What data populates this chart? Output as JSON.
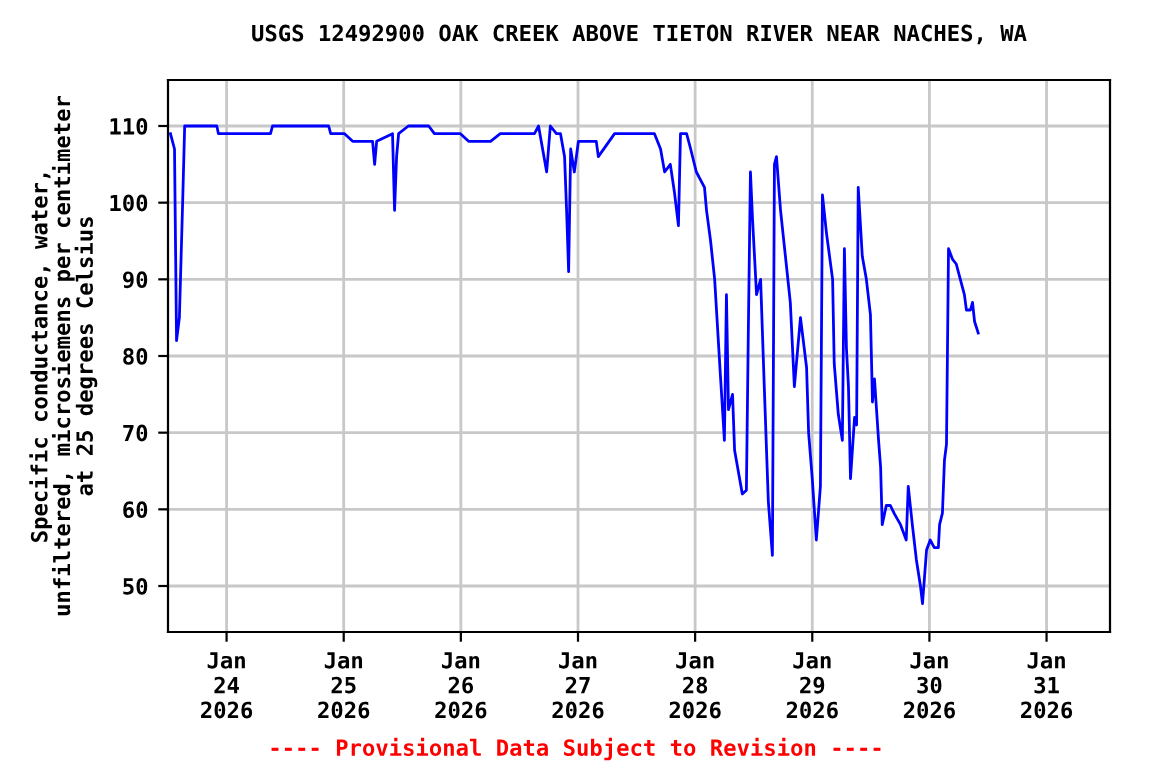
{
  "chart_data": {
    "type": "line",
    "title": "USGS 12492900 OAK CREEK ABOVE TIETON RIVER NEAR NACHES, WA",
    "ylabel": "Specific conductance, water,\nunfiltered, microsiemens per centimeter\nat 25 degrees Celsius",
    "annotations": [
      "---- Provisional Data Subject to Revision ----"
    ],
    "xlim": [
      "2026-01-23T12:00",
      "2026-01-31T13:00"
    ],
    "xticks": [
      {
        "value": "2026-01-24",
        "label": "Jan\n24\n2026"
      },
      {
        "value": "2026-01-25",
        "label": "Jan\n25\n2026"
      },
      {
        "value": "2026-01-26",
        "label": "Jan\n26\n2026"
      },
      {
        "value": "2026-01-27",
        "label": "Jan\n27\n2026"
      },
      {
        "value": "2026-01-28",
        "label": "Jan\n28\n2026"
      },
      {
        "value": "2026-01-29",
        "label": "Jan\n29\n2026"
      },
      {
        "value": "2026-01-30",
        "label": "Jan\n30\n2026"
      },
      {
        "value": "2026-01-31",
        "label": "Jan\n31\n2026"
      }
    ],
    "ylim": [
      44,
      116
    ],
    "yticks": [
      50,
      60,
      70,
      80,
      90,
      100,
      110
    ],
    "grid": true,
    "legend": false,
    "marker": "none",
    "line_style": "solid",
    "series": [
      {
        "color": "#0000ff",
        "x": [
          "2026-01-23T12:30",
          "2026-01-23T13:20",
          "2026-01-23T13:45",
          "2026-01-23T14:20",
          "2026-01-23T15:00",
          "2026-01-23T15:25",
          "2026-01-23T22:00",
          "2026-01-23T22:20",
          "2026-01-24T09:00",
          "2026-01-24T09:25",
          "2026-01-24T20:55",
          "2026-01-24T21:20",
          "2026-01-25T00:10",
          "2026-01-25T01:50",
          "2026-01-25T05:55",
          "2026-01-25T06:20",
          "2026-01-25T06:45",
          "2026-01-25T10:00",
          "2026-01-25T10:25",
          "2026-01-25T10:50",
          "2026-01-25T11:15",
          "2026-01-25T13:15",
          "2026-01-25T17:25",
          "2026-01-25T18:35",
          "2026-01-25T23:55",
          "2026-01-26T01:35",
          "2026-01-26T06:05",
          "2026-01-26T08:05",
          "2026-01-26T15:05",
          "2026-01-26T15:55",
          "2026-01-26T17:35",
          "2026-01-26T18:20",
          "2026-01-26T19:35",
          "2026-01-26T20:25",
          "2026-01-26T21:15",
          "2026-01-26T21:40",
          "2026-01-26T22:05",
          "2026-01-26T22:30",
          "2026-01-26T23:15",
          "2026-01-27T00:05",
          "2026-01-27T03:45",
          "2026-01-27T04:10",
          "2026-01-27T05:50",
          "2026-01-27T07:30",
          "2026-01-27T15:40",
          "2026-01-27T16:55",
          "2026-01-27T17:45",
          "2026-01-27T18:55",
          "2026-01-27T19:45",
          "2026-01-27T20:35",
          "2026-01-27T21:00",
          "2026-01-27T22:15",
          "2026-01-27T23:05",
          "2026-01-28T00:15",
          "2026-01-28T01:55",
          "2026-01-28T02:20",
          "2026-01-28T03:10",
          "2026-01-28T04:00",
          "2026-01-28T05:10",
          "2026-01-28T06:00",
          "2026-01-28T06:25",
          "2026-01-28T06:50",
          "2026-01-28T07:40",
          "2026-01-28T08:05",
          "2026-01-28T09:40",
          "2026-01-28T10:30",
          "2026-01-28T10:55",
          "2026-01-28T11:20",
          "2026-01-28T11:45",
          "2026-01-28T12:35",
          "2026-01-28T13:25",
          "2026-01-28T14:10",
          "2026-01-28T15:00",
          "2026-01-28T15:50",
          "2026-01-28T16:15",
          "2026-01-28T16:40",
          "2026-01-28T17:30",
          "2026-01-28T18:40",
          "2026-01-28T19:30",
          "2026-01-28T20:20",
          "2026-01-28T21:35",
          "2026-01-28T22:50",
          "2026-01-28T23:15",
          "2026-01-29T00:00",
          "2026-01-29T00:50",
          "2026-01-29T01:40",
          "2026-01-29T02:05",
          "2026-01-29T02:55",
          "2026-01-29T04:10",
          "2026-01-29T04:30",
          "2026-01-29T05:20",
          "2026-01-29T06:10",
          "2026-01-29T06:35",
          "2026-01-29T07:00",
          "2026-01-29T07:25",
          "2026-01-29T07:50",
          "2026-01-29T08:40",
          "2026-01-29T09:05",
          "2026-01-29T09:25",
          "2026-01-29T10:15",
          "2026-01-29T11:05",
          "2026-01-29T11:55",
          "2026-01-29T12:20",
          "2026-01-29T12:45",
          "2026-01-29T13:35",
          "2026-01-29T14:00",
          "2026-01-29T14:20",
          "2026-01-29T15:10",
          "2026-01-29T16:00",
          "2026-01-29T16:50",
          "2026-01-29T18:05",
          "2026-01-29T19:15",
          "2026-01-29T19:40",
          "2026-01-29T20:30",
          "2026-01-29T21:20",
          "2026-01-29T22:10",
          "2026-01-29T22:35",
          "2026-01-29T23:25",
          "2026-01-30T00:10",
          "2026-01-30T01:00",
          "2026-01-30T01:50",
          "2026-01-30T02:05",
          "2026-01-30T02:40",
          "2026-01-30T03:05",
          "2026-01-30T03:30",
          "2026-01-30T03:55",
          "2026-01-30T04:45",
          "2026-01-30T05:30",
          "2026-01-30T06:20",
          "2026-01-30T07:10",
          "2026-01-30T07:35",
          "2026-01-30T08:25",
          "2026-01-30T08:50",
          "2026-01-30T09:15",
          "2026-01-30T10:00"
        ],
        "values": [
          109,
          107,
          82,
          85,
          100,
          110,
          110,
          109,
          109,
          110,
          110,
          109,
          109,
          108,
          108,
          105,
          108,
          109,
          99,
          106,
          109,
          110,
          110,
          109,
          109,
          108,
          108,
          109,
          109,
          110,
          104,
          110,
          109,
          109,
          106,
          99,
          91,
          107,
          104,
          108,
          108,
          106,
          107.5,
          109,
          109,
          107,
          104,
          105,
          101.4,
          97,
          109,
          109,
          107,
          104,
          102,
          99,
          95,
          90,
          77.6,
          69,
          88,
          73,
          75,
          67.7,
          62,
          62.5,
          84,
          104,
          98,
          88,
          90,
          76,
          61,
          54,
          105,
          106,
          99,
          92,
          87,
          76,
          85,
          78.5,
          70,
          64,
          56,
          63,
          101,
          96,
          90,
          79,
          72.4,
          69,
          94,
          81,
          76,
          64,
          72,
          71,
          102,
          93,
          90,
          85.4,
          74,
          77,
          69,
          65.5,
          58,
          60.5,
          60.5,
          59.4,
          58,
          56,
          63,
          58,
          53.4,
          50,
          47.7,
          54.7,
          56,
          55,
          55,
          58,
          59.5,
          66.4,
          68.5,
          94,
          92.6,
          92,
          90,
          88,
          86,
          86,
          87,
          84.5,
          83
        ]
      }
    ]
  }
}
